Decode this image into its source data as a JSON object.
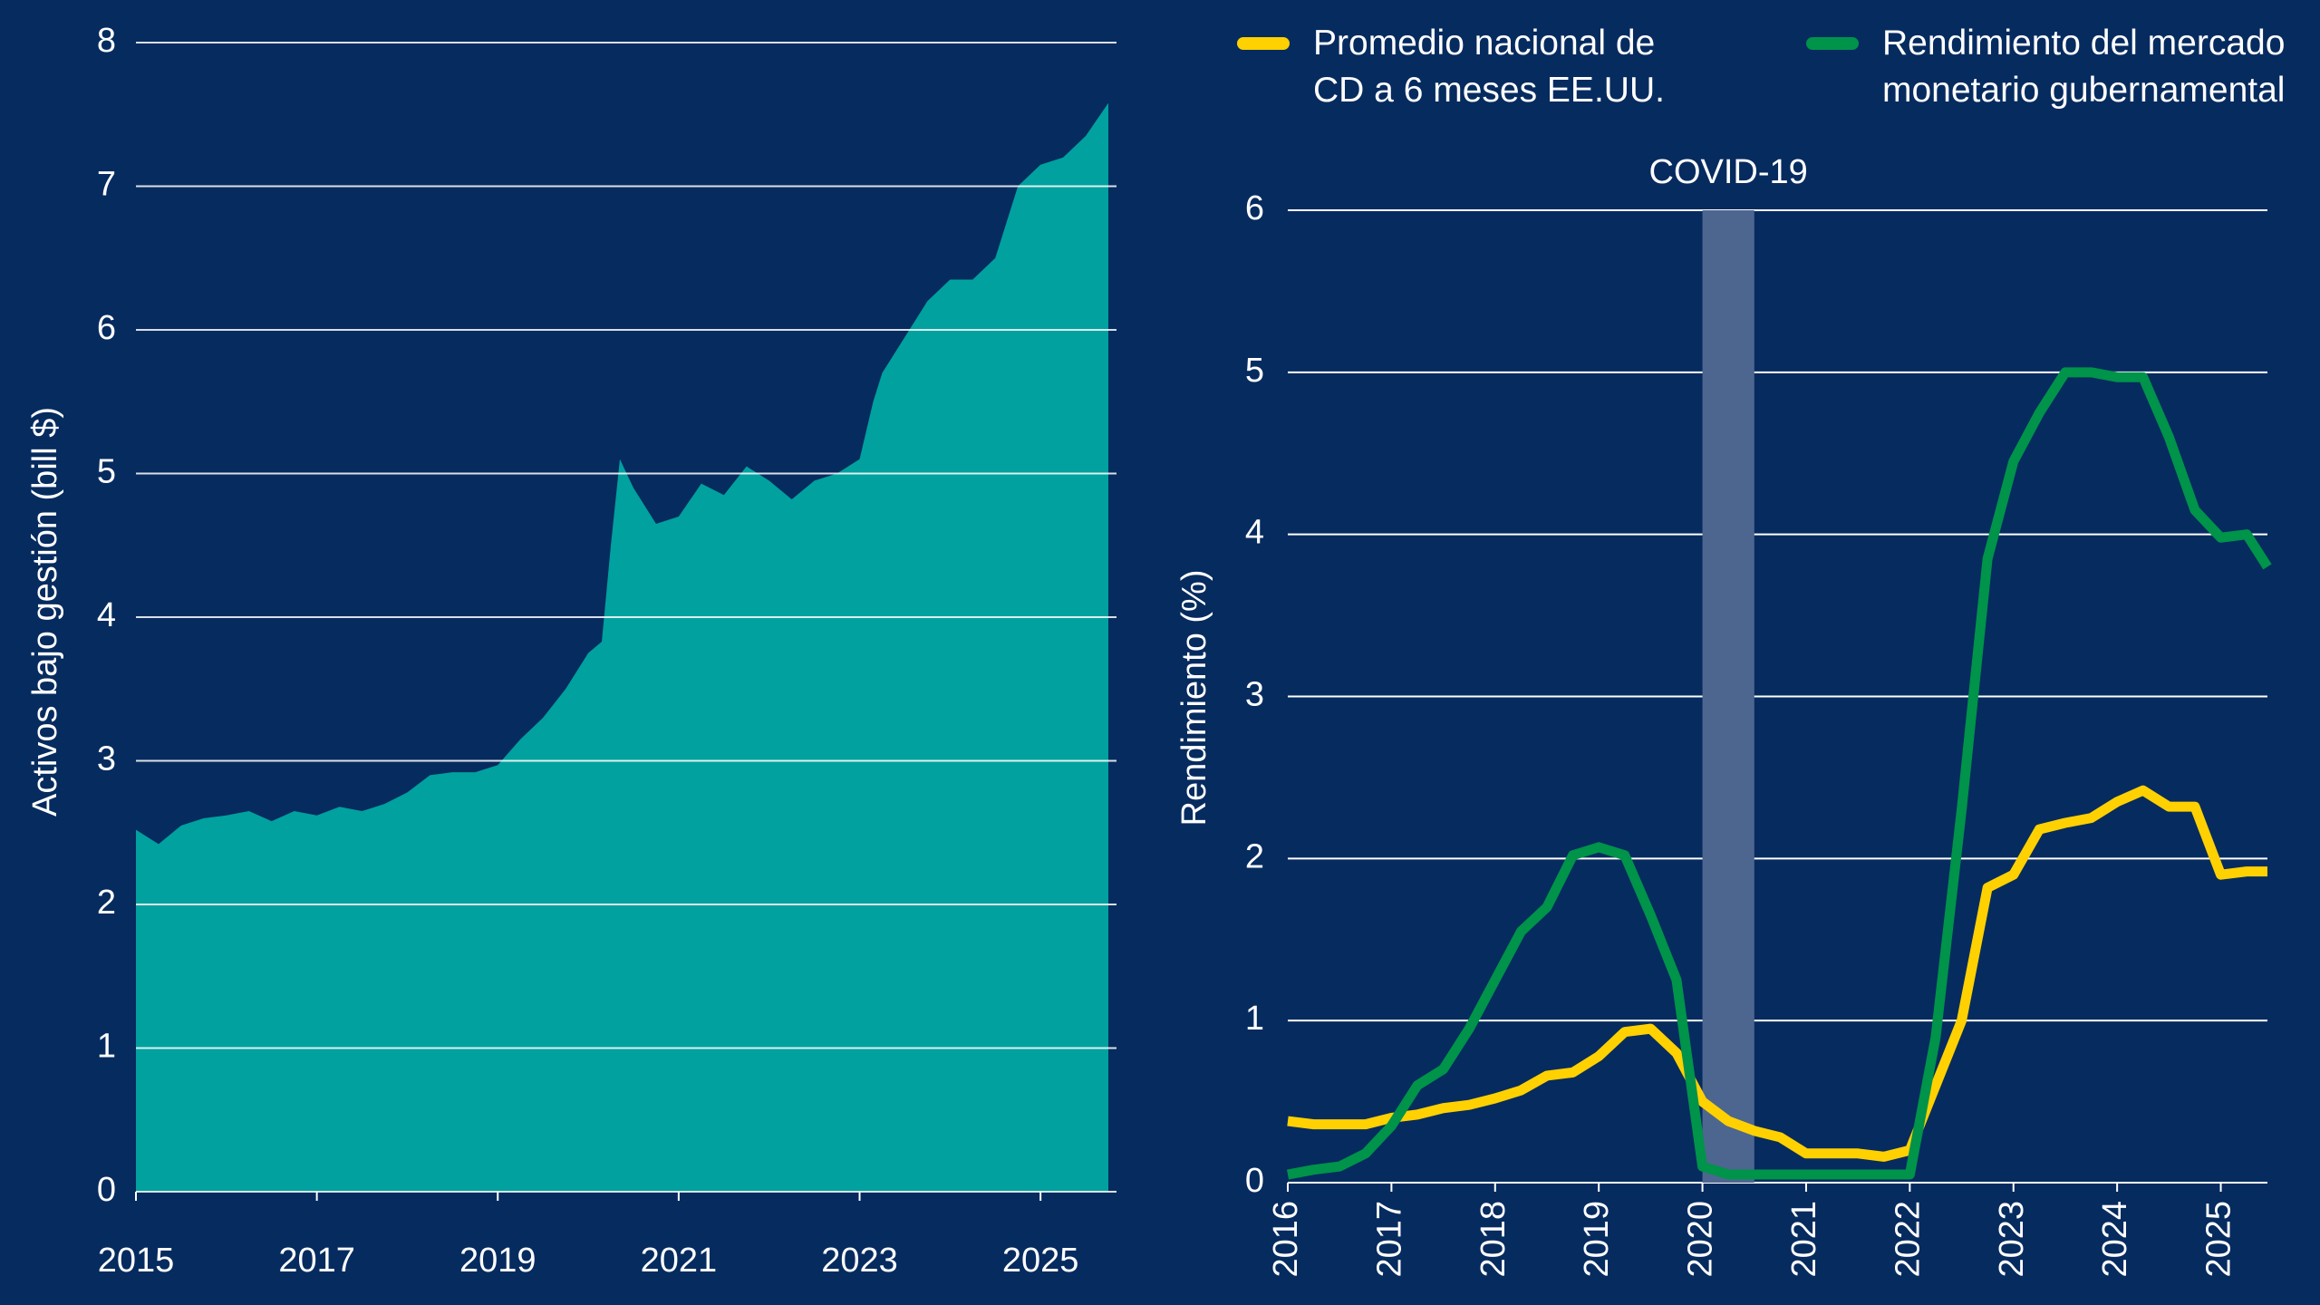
{
  "chart_data": [
    {
      "type": "area",
      "y_label": "Activos bajo gestión (bill $)",
      "color": "#00a19e",
      "grid": true,
      "x": [
        2015,
        2015.25,
        2015.5,
        2015.75,
        2016,
        2016.25,
        2016.5,
        2016.75,
        2017,
        2017.25,
        2017.5,
        2017.75,
        2018,
        2018.25,
        2018.5,
        2018.75,
        2019,
        2019.25,
        2019.5,
        2019.75,
        2020,
        2020.15,
        2020.25,
        2020.35,
        2020.5,
        2020.75,
        2021,
        2021.25,
        2021.5,
        2021.75,
        2022,
        2022.25,
        2022.5,
        2022.75,
        2023,
        2023.15,
        2023.25,
        2023.5,
        2023.75,
        2024,
        2024.25,
        2024.5,
        2024.75,
        2025,
        2025.25,
        2025.5,
        2025.75
      ],
      "values": [
        2.52,
        2.42,
        2.55,
        2.6,
        2.62,
        2.65,
        2.58,
        2.65,
        2.62,
        2.68,
        2.65,
        2.7,
        2.78,
        2.9,
        2.92,
        2.92,
        2.97,
        3.15,
        3.3,
        3.5,
        3.75,
        3.83,
        4.5,
        5.1,
        4.9,
        4.65,
        4.7,
        4.93,
        4.85,
        5.05,
        4.95,
        4.82,
        4.95,
        5.0,
        5.1,
        5.5,
        5.7,
        5.95,
        6.2,
        6.35,
        6.35,
        6.5,
        7.0,
        7.15,
        7.2,
        7.35,
        7.58
      ],
      "xlim": [
        2015,
        2025.8
      ],
      "xticks": [
        2015,
        2017,
        2019,
        2021,
        2023,
        2025
      ],
      "ylim": [
        0,
        8
      ],
      "yticks": [
        0,
        1,
        2,
        3,
        4,
        5,
        6,
        7,
        8
      ]
    },
    {
      "type": "line",
      "y_label": "Rendimiento (%)",
      "grid": true,
      "x": [
        2016,
        2016.25,
        2016.5,
        2016.75,
        2017,
        2017.25,
        2017.5,
        2017.75,
        2018,
        2018.25,
        2018.5,
        2018.75,
        2019,
        2019.25,
        2019.5,
        2019.75,
        2020,
        2020.25,
        2020.5,
        2020.75,
        2021,
        2021.25,
        2021.5,
        2021.75,
        2022,
        2022.25,
        2022.5,
        2022.75,
        2023,
        2023.25,
        2023.5,
        2023.75,
        2024,
        2024.25,
        2024.5,
        2024.75,
        2025,
        2025.25,
        2025.45
      ],
      "series": [
        {
          "name": "Promedio nacional de CD a 6 meses EE.UU.",
          "color": "#ffd100",
          "values": [
            0.38,
            0.36,
            0.36,
            0.36,
            0.4,
            0.42,
            0.46,
            0.48,
            0.52,
            0.57,
            0.66,
            0.68,
            0.78,
            0.93,
            0.95,
            0.8,
            0.5,
            0.38,
            0.32,
            0.28,
            0.18,
            0.18,
            0.18,
            0.16,
            0.2,
            0.6,
            1.0,
            1.82,
            1.9,
            2.18,
            2.22,
            2.25,
            2.35,
            2.42,
            2.32,
            2.32,
            1.9,
            1.92,
            1.92
          ]
        },
        {
          "name": "Rendimiento del mercado monetario gubernamental",
          "color": "#00934a",
          "values": [
            0.05,
            0.08,
            0.1,
            0.18,
            0.35,
            0.6,
            0.7,
            0.95,
            1.25,
            1.55,
            1.7,
            2.02,
            2.07,
            2.02,
            1.65,
            1.25,
            0.1,
            0.05,
            0.05,
            0.05,
            0.05,
            0.05,
            0.05,
            0.05,
            0.05,
            0.9,
            2.3,
            3.85,
            4.45,
            4.75,
            5.0,
            5.0,
            4.97,
            4.97,
            4.6,
            4.15,
            3.98,
            4.0,
            3.8
          ]
        }
      ],
      "annotations": [
        {
          "text": "COVID-19",
          "x_start": 2020,
          "x_end": 2020.5
        }
      ],
      "xlim": [
        2016,
        2025.45
      ],
      "xticks": [
        2016,
        2017,
        2018,
        2019,
        2020,
        2021,
        2022,
        2023,
        2024,
        2025
      ],
      "ylim": [
        0,
        6
      ],
      "yticks": [
        0,
        1,
        2,
        3,
        4,
        5,
        6
      ]
    }
  ]
}
